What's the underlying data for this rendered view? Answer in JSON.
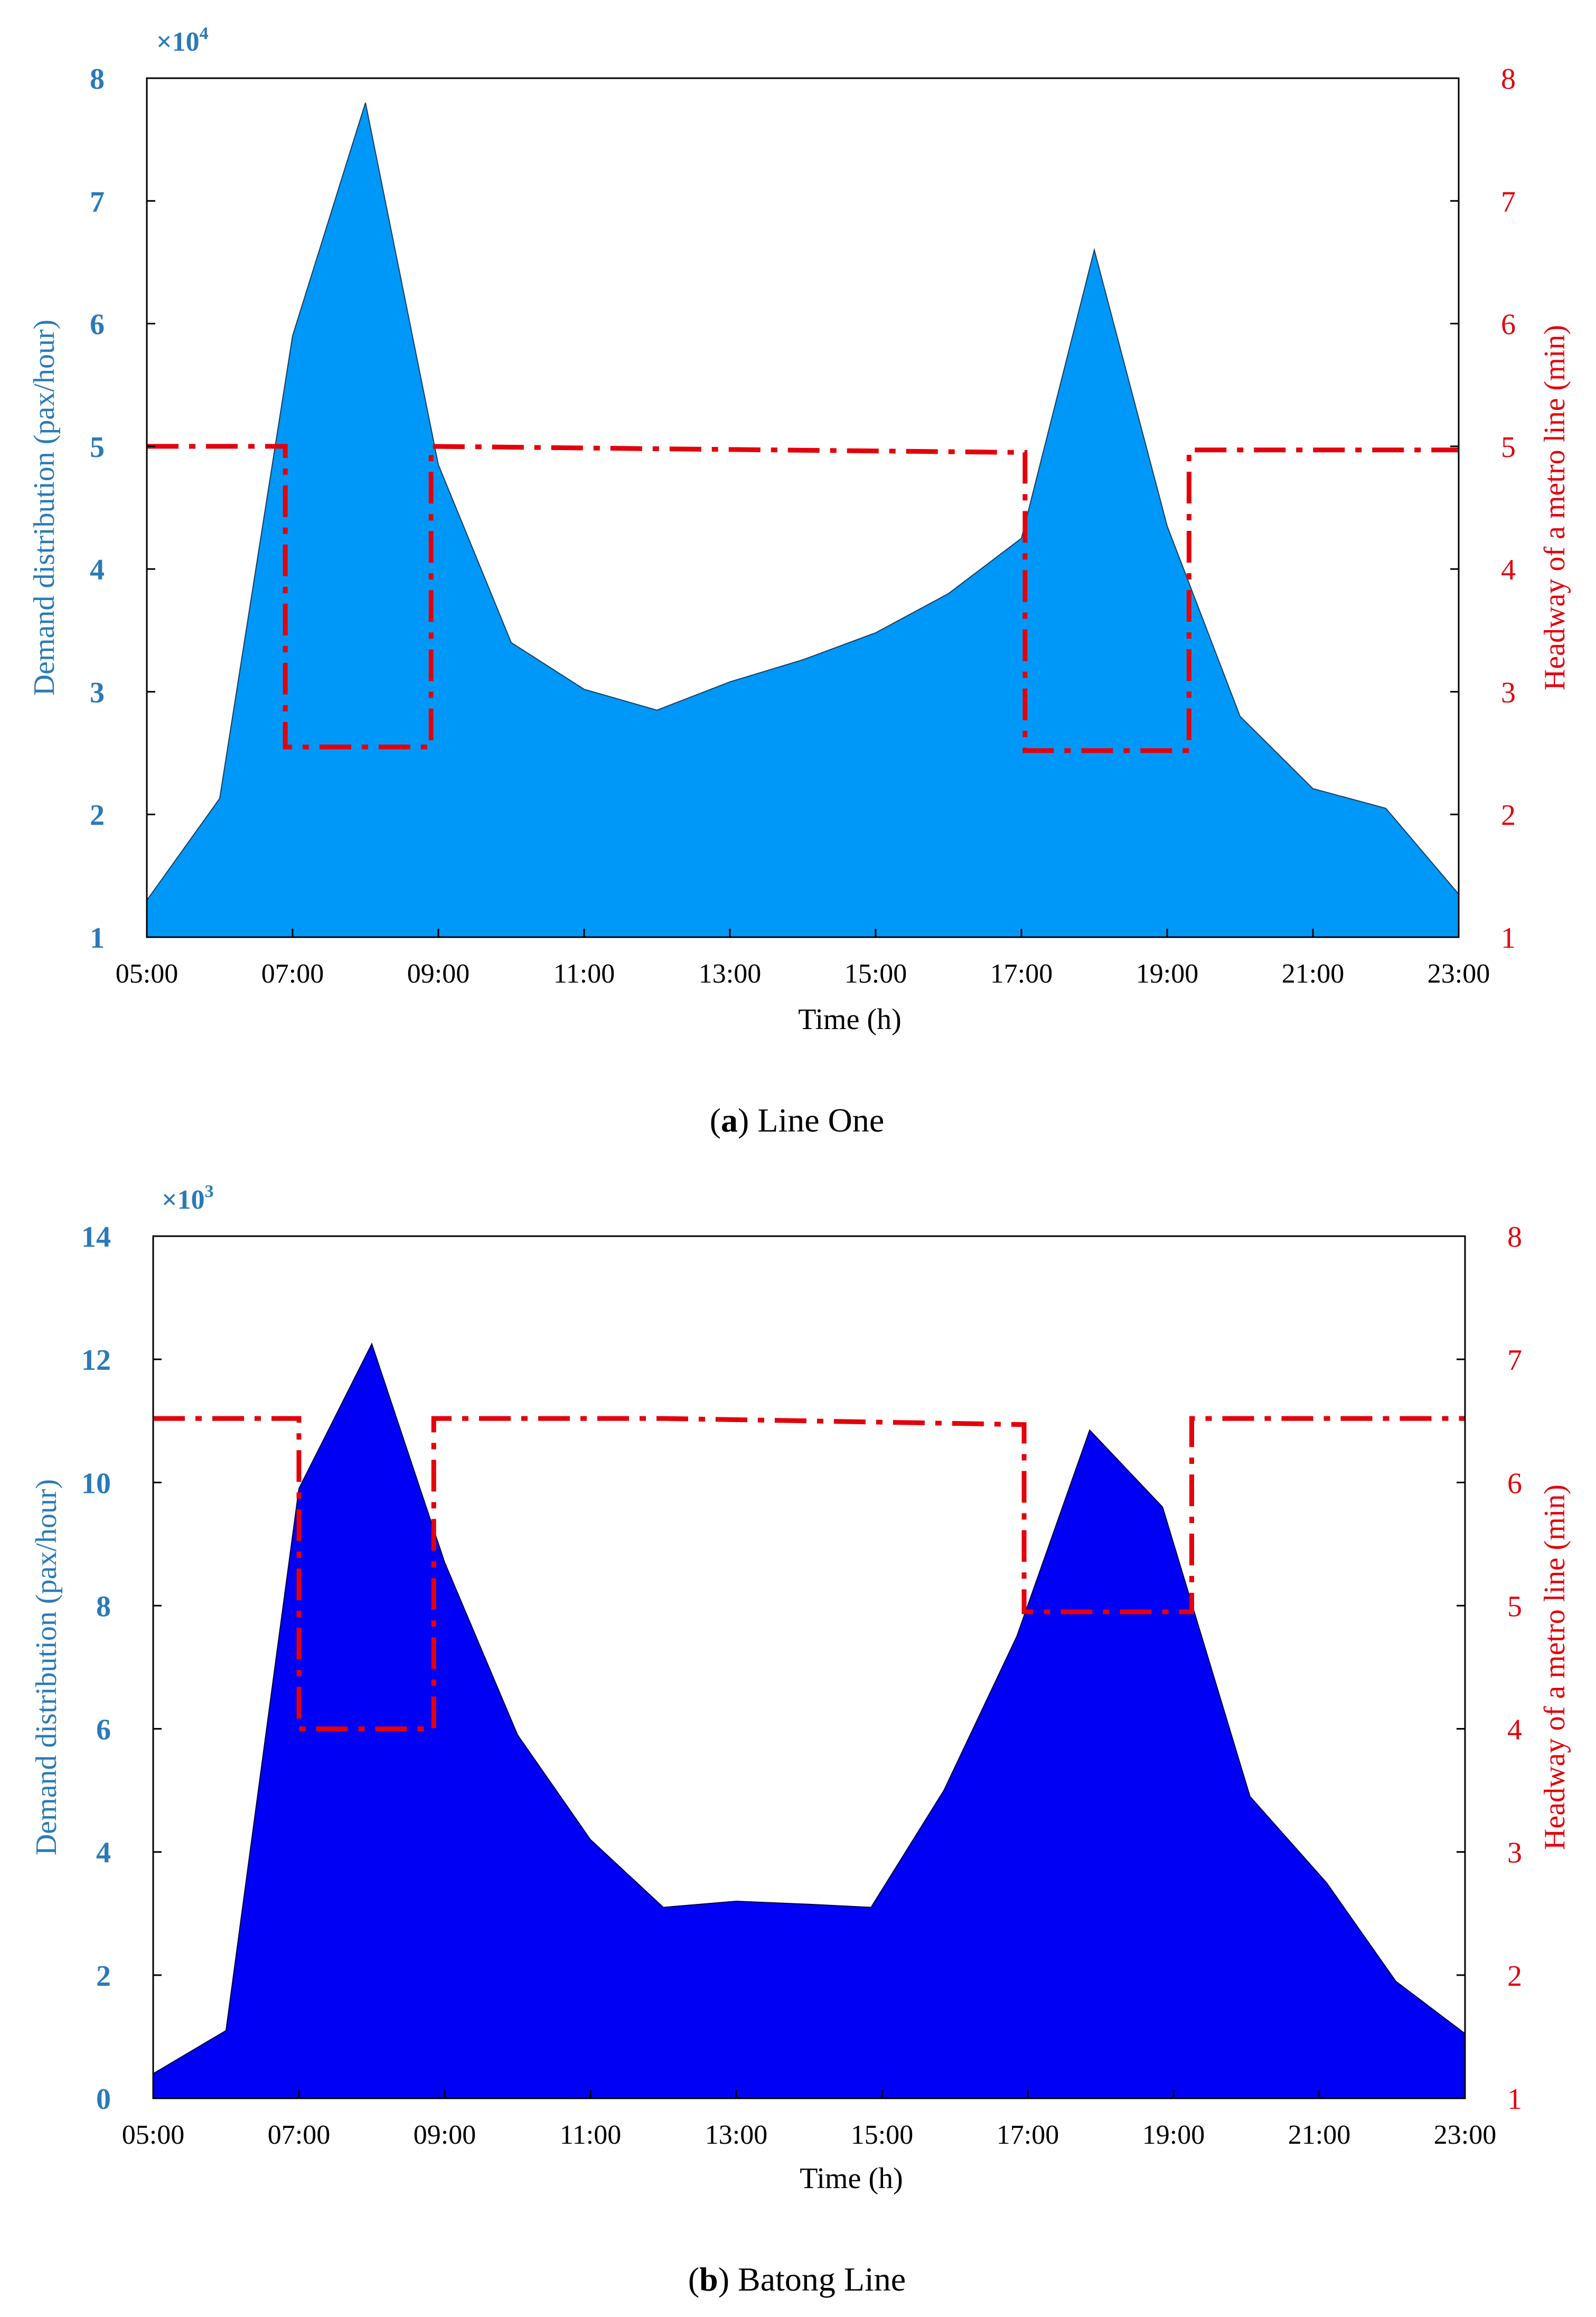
{
  "chart_data": [
    {
      "id": "a",
      "type": "area",
      "caption_letter": "a",
      "caption_text": "Line One",
      "xlabel": "Time (h)",
      "ylabel_left": "Demand distribution (pax/hour)",
      "ylabel_right": "Headway of a metro line (min)",
      "left_multiplier_base": "×10",
      "left_multiplier_exp": "4",
      "x_range": [
        5,
        23
      ],
      "x_ticks": [
        "05:00",
        "07:00",
        "09:00",
        "11:00",
        "13:00",
        "15:00",
        "17:00",
        "19:00",
        "21:00",
        "23:00"
      ],
      "ylim_left": [
        1,
        8
      ],
      "left_ticks": [
        "1",
        "2",
        "3",
        "4",
        "5",
        "6",
        "7",
        "8"
      ],
      "ylim_right": [
        1,
        8
      ],
      "right_ticks": [
        "1",
        "2",
        "3",
        "4",
        "5",
        "6",
        "7",
        "8"
      ],
      "area_color": "#0098f8",
      "headway_color": "#e3000b",
      "demand": {
        "name": "Demand distribution",
        "x": [
          5,
          6,
          7,
          8,
          9,
          10,
          11,
          12,
          13,
          14,
          15,
          16,
          17,
          18,
          19,
          20,
          21,
          22,
          23
        ],
        "values": [
          1.3,
          2.13,
          5.9,
          7.8,
          4.85,
          3.4,
          3.02,
          2.85,
          3.08,
          3.26,
          3.48,
          3.8,
          4.25,
          6.6,
          4.35,
          2.8,
          2.21,
          2.05,
          1.35
        ]
      },
      "headway": {
        "name": "Headway",
        "points": [
          [
            5,
            5.0
          ],
          [
            6.9,
            5.0
          ],
          [
            6.9,
            2.55
          ],
          [
            8.9,
            2.55
          ],
          [
            8.9,
            5.0
          ],
          [
            12,
            4.98
          ],
          [
            17.05,
            4.95
          ],
          [
            17.05,
            2.52
          ],
          [
            19.3,
            2.52
          ],
          [
            19.3,
            4.97
          ],
          [
            23,
            4.97
          ]
        ]
      }
    },
    {
      "id": "b",
      "type": "area",
      "caption_letter": "b",
      "caption_text": "Batong Line",
      "xlabel": "Time (h)",
      "ylabel_left": "Demand distribution (pax/hour)",
      "ylabel_right": "Headway of a metro line (min)",
      "left_multiplier_base": "×10",
      "left_multiplier_exp": "3",
      "x_range": [
        5,
        23
      ],
      "x_ticks": [
        "05:00",
        "07:00",
        "09:00",
        "11:00",
        "13:00",
        "15:00",
        "17:00",
        "19:00",
        "21:00",
        "23:00"
      ],
      "ylim_left": [
        0,
        14
      ],
      "left_ticks": [
        "0",
        "2",
        "4",
        "6",
        "8",
        "10",
        "12",
        "14"
      ],
      "ylim_right": [
        1,
        8
      ],
      "right_ticks": [
        "1",
        "2",
        "3",
        "4",
        "5",
        "6",
        "7",
        "8"
      ],
      "area_color": "#0000f5",
      "headway_color": "#e3000b",
      "demand": {
        "name": "Demand distribution",
        "x": [
          5,
          6,
          7,
          8,
          9,
          10,
          11,
          12,
          13,
          14,
          14.85,
          15.85,
          16.85,
          17.85,
          18.85,
          20.05,
          21.1,
          22.05,
          23
        ],
        "values": [
          0.4,
          1.1,
          9.9,
          12.25,
          8.7,
          5.9,
          4.2,
          3.1,
          3.2,
          3.15,
          3.1,
          5.0,
          7.5,
          10.85,
          9.6,
          4.9,
          3.5,
          1.9,
          1.05
        ]
      },
      "headway": {
        "name": "Headway",
        "points": [
          [
            5,
            6.52
          ],
          [
            7.0,
            6.52
          ],
          [
            7.0,
            4.0
          ],
          [
            8.85,
            4.0
          ],
          [
            8.85,
            6.52
          ],
          [
            12,
            6.52
          ],
          [
            16.95,
            6.47
          ],
          [
            16.95,
            4.95
          ],
          [
            19.25,
            4.95
          ],
          [
            19.25,
            6.52
          ],
          [
            23,
            6.52
          ]
        ]
      }
    }
  ]
}
